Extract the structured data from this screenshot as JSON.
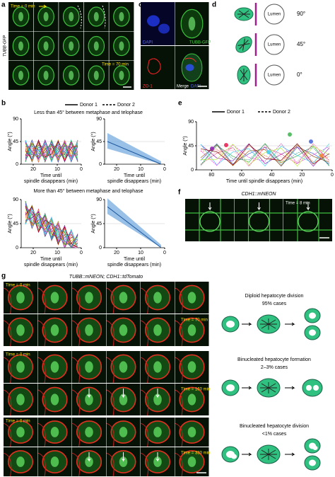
{
  "panels": {
    "a": {
      "label": "a",
      "stain": "TUBB-GFP",
      "time_start": "Time = 0 min",
      "time_end": "Time = 70 min"
    },
    "c": {
      "label": "c",
      "channels": [
        "DAPI",
        "TUBB-GFP",
        "ZO-1",
        "Merge"
      ],
      "merge_dapi": "DAPI"
    },
    "d": {
      "label": "d",
      "lumen": "Lumen",
      "angles": [
        "90°",
        "45°",
        "0°"
      ]
    },
    "b": {
      "label": "b",
      "legend": [
        "Donor 1",
        "Donor 2"
      ],
      "subtitle_top": "Less than 45° between metaphase and telophase",
      "subtitle_bottom": "More than 45° between metaphase and telophase",
      "y_label": "Angle (°)",
      "x_label_lines": [
        "Time until",
        "spindle disappears (min)"
      ],
      "xlim": [
        25,
        0
      ],
      "ylim": [
        0,
        90
      ],
      "yticks": [
        0,
        45,
        90
      ],
      "xticks": [
        20,
        10,
        0
      ]
    },
    "e": {
      "label": "e",
      "legend": [
        "Donor 1",
        "Donor 2"
      ],
      "y_label": "Angle (°)",
      "x_label": "Time until spindle disappears (min)",
      "xlim": [
        90,
        0
      ],
      "ylim": [
        0,
        90
      ],
      "yticks": [
        0,
        45,
        90
      ],
      "xticks": [
        80,
        60,
        40,
        20,
        0
      ]
    },
    "f": {
      "label": "f",
      "title": "CDH1::mNEON",
      "time_end": "Time = 8 min"
    },
    "g": {
      "label": "g",
      "title": "TUBB::mNEON; CDH1::tdTomato",
      "rows": [
        {
          "time_start": "Time = 0 min",
          "time_end": "Time = 70 min"
        },
        {
          "time_start": "Time = 0 min",
          "time_end": "Time = 160 min"
        },
        {
          "time_start": "Time = 0 min",
          "time_end": "Time = 330 min"
        }
      ],
      "schemes": [
        {
          "title": "Diploid hepatocyte division",
          "cases": "95% cases"
        },
        {
          "title": "Binucleated hepatocyte formation",
          "cases": "2–3% cases"
        },
        {
          "title": "Binucleated hepatocyte division",
          "cases": "<1% cases"
        }
      ]
    }
  }
}
